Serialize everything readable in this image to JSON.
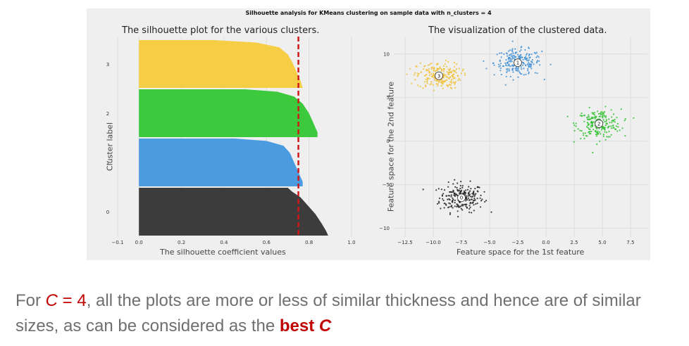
{
  "figure": {
    "suptitle": "Silhouette analysis for KMeans clustering on sample data with n_clusters = 4"
  },
  "chart_data": [
    {
      "type": "area",
      "subtype": "silhouette",
      "title": "The silhouette plot for the various clusters.",
      "xlabel": "The silhouette coefficient values",
      "ylabel": "Cluster label",
      "xlim": [
        -0.1,
        1.0
      ],
      "x_ticks": [
        "−0.1",
        "0.0",
        "0.2",
        "0.4",
        "0.6",
        "0.8",
        "1.0"
      ],
      "x_tick_values": [
        -0.1,
        0.0,
        0.2,
        0.4,
        0.6,
        0.8,
        1.0
      ],
      "average_silhouette": 0.75,
      "average_line_color": "#d01818",
      "clusters": [
        {
          "label": "0",
          "color": "#3c3c3c",
          "profile": [
            [
              0.0,
              0.89
            ],
            [
              0.1,
              0.88
            ],
            [
              0.25,
              0.86
            ],
            [
              0.45,
              0.83
            ],
            [
              0.65,
              0.79
            ],
            [
              0.8,
              0.76
            ],
            [
              0.92,
              0.72
            ],
            [
              1.0,
              0.7
            ]
          ]
        },
        {
          "label": "1",
          "color": "#4a9be0",
          "profile": [
            [
              0.0,
              0.77
            ],
            [
              0.1,
              0.77
            ],
            [
              0.3,
              0.75
            ],
            [
              0.5,
              0.73
            ],
            [
              0.7,
              0.71
            ],
            [
              0.85,
              0.68
            ],
            [
              0.95,
              0.6
            ],
            [
              1.0,
              0.45
            ]
          ]
        },
        {
          "label": "2",
          "color": "#3dc93d",
          "profile": [
            [
              0.0,
              0.84
            ],
            [
              0.1,
              0.84
            ],
            [
              0.3,
              0.82
            ],
            [
              0.5,
              0.8
            ],
            [
              0.7,
              0.77
            ],
            [
              0.85,
              0.73
            ],
            [
              0.95,
              0.65
            ],
            [
              1.0,
              0.5
            ]
          ]
        },
        {
          "label": "3",
          "color": "#f5ce45",
          "profile": [
            [
              0.0,
              0.77
            ],
            [
              0.15,
              0.76
            ],
            [
              0.35,
              0.74
            ],
            [
              0.55,
              0.72
            ],
            [
              0.7,
              0.7
            ],
            [
              0.85,
              0.66
            ],
            [
              0.95,
              0.55
            ],
            [
              1.0,
              0.35
            ]
          ]
        }
      ]
    },
    {
      "type": "scatter",
      "title": "The visualization of the clustered data.",
      "xlabel": "Feature space for the 1st feature",
      "ylabel": "Feature space for the 2nd feature",
      "xlim": [
        -13.5,
        9
      ],
      "ylim": [
        -11,
        12
      ],
      "x_ticks": [
        "−12.5",
        "−10.0",
        "−7.5",
        "−5.0",
        "−2.5",
        "0.0",
        "2.5",
        "5.0",
        "7.5"
      ],
      "x_tick_values": [
        -12.5,
        -10,
        -7.5,
        -5,
        -2.5,
        0,
        2.5,
        5,
        7.5
      ],
      "y_ticks": [
        "10",
        "5",
        "0",
        "−5",
        "−10"
      ],
      "y_tick_values": [
        10,
        5,
        0,
        -5,
        -10
      ],
      "clusters": [
        {
          "label": "0",
          "color": "#222222",
          "center": [
            -7.5,
            -6.5
          ],
          "spread": [
            1.3,
            1.1
          ],
          "n": 220
        },
        {
          "label": "1",
          "color": "#3f90d6",
          "center": [
            -2.5,
            9.0
          ],
          "spread": [
            1.4,
            1.0
          ],
          "n": 220
        },
        {
          "label": "2",
          "color": "#2fbf2f",
          "center": [
            4.7,
            2.0
          ],
          "spread": [
            1.3,
            1.1
          ],
          "n": 220
        },
        {
          "label": "3",
          "color": "#f0c030",
          "center": [
            -9.5,
            7.5
          ],
          "spread": [
            1.3,
            1.0
          ],
          "n": 220
        }
      ]
    }
  ],
  "caption": {
    "part1": "For ",
    "c_var": "C",
    "eq4": " = 4",
    "part2": ", all the plots are more or less of similar thickness and hence are of similar sizes, as can be considered as the ",
    "best": "best",
    "space": " ",
    "c_var2": "C"
  }
}
